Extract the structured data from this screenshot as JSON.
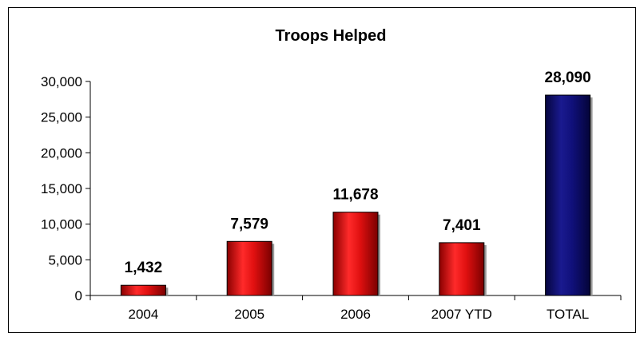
{
  "chart_data": {
    "type": "bar",
    "title": "Troops Helped",
    "xlabel": "",
    "ylabel": "",
    "categories": [
      "2004",
      "2005",
      "2006",
      "2007 YTD",
      "TOTAL"
    ],
    "values": [
      1432,
      7579,
      11678,
      7401,
      28090
    ],
    "value_labels": [
      "1,432",
      "7,579",
      "11,678",
      "7,401",
      "28,090"
    ],
    "bar_colors": [
      "#e01010",
      "#e01010",
      "#e01010",
      "#e01010",
      "#10107a"
    ],
    "ylim": [
      0,
      30000
    ],
    "yticks": [
      0,
      5000,
      10000,
      15000,
      20000,
      25000,
      30000
    ],
    "ytick_labels": [
      "0",
      "5,000",
      "10,000",
      "15,000",
      "20,000",
      "25,000",
      "30,000"
    ],
    "grid": false,
    "legend": "none"
  }
}
